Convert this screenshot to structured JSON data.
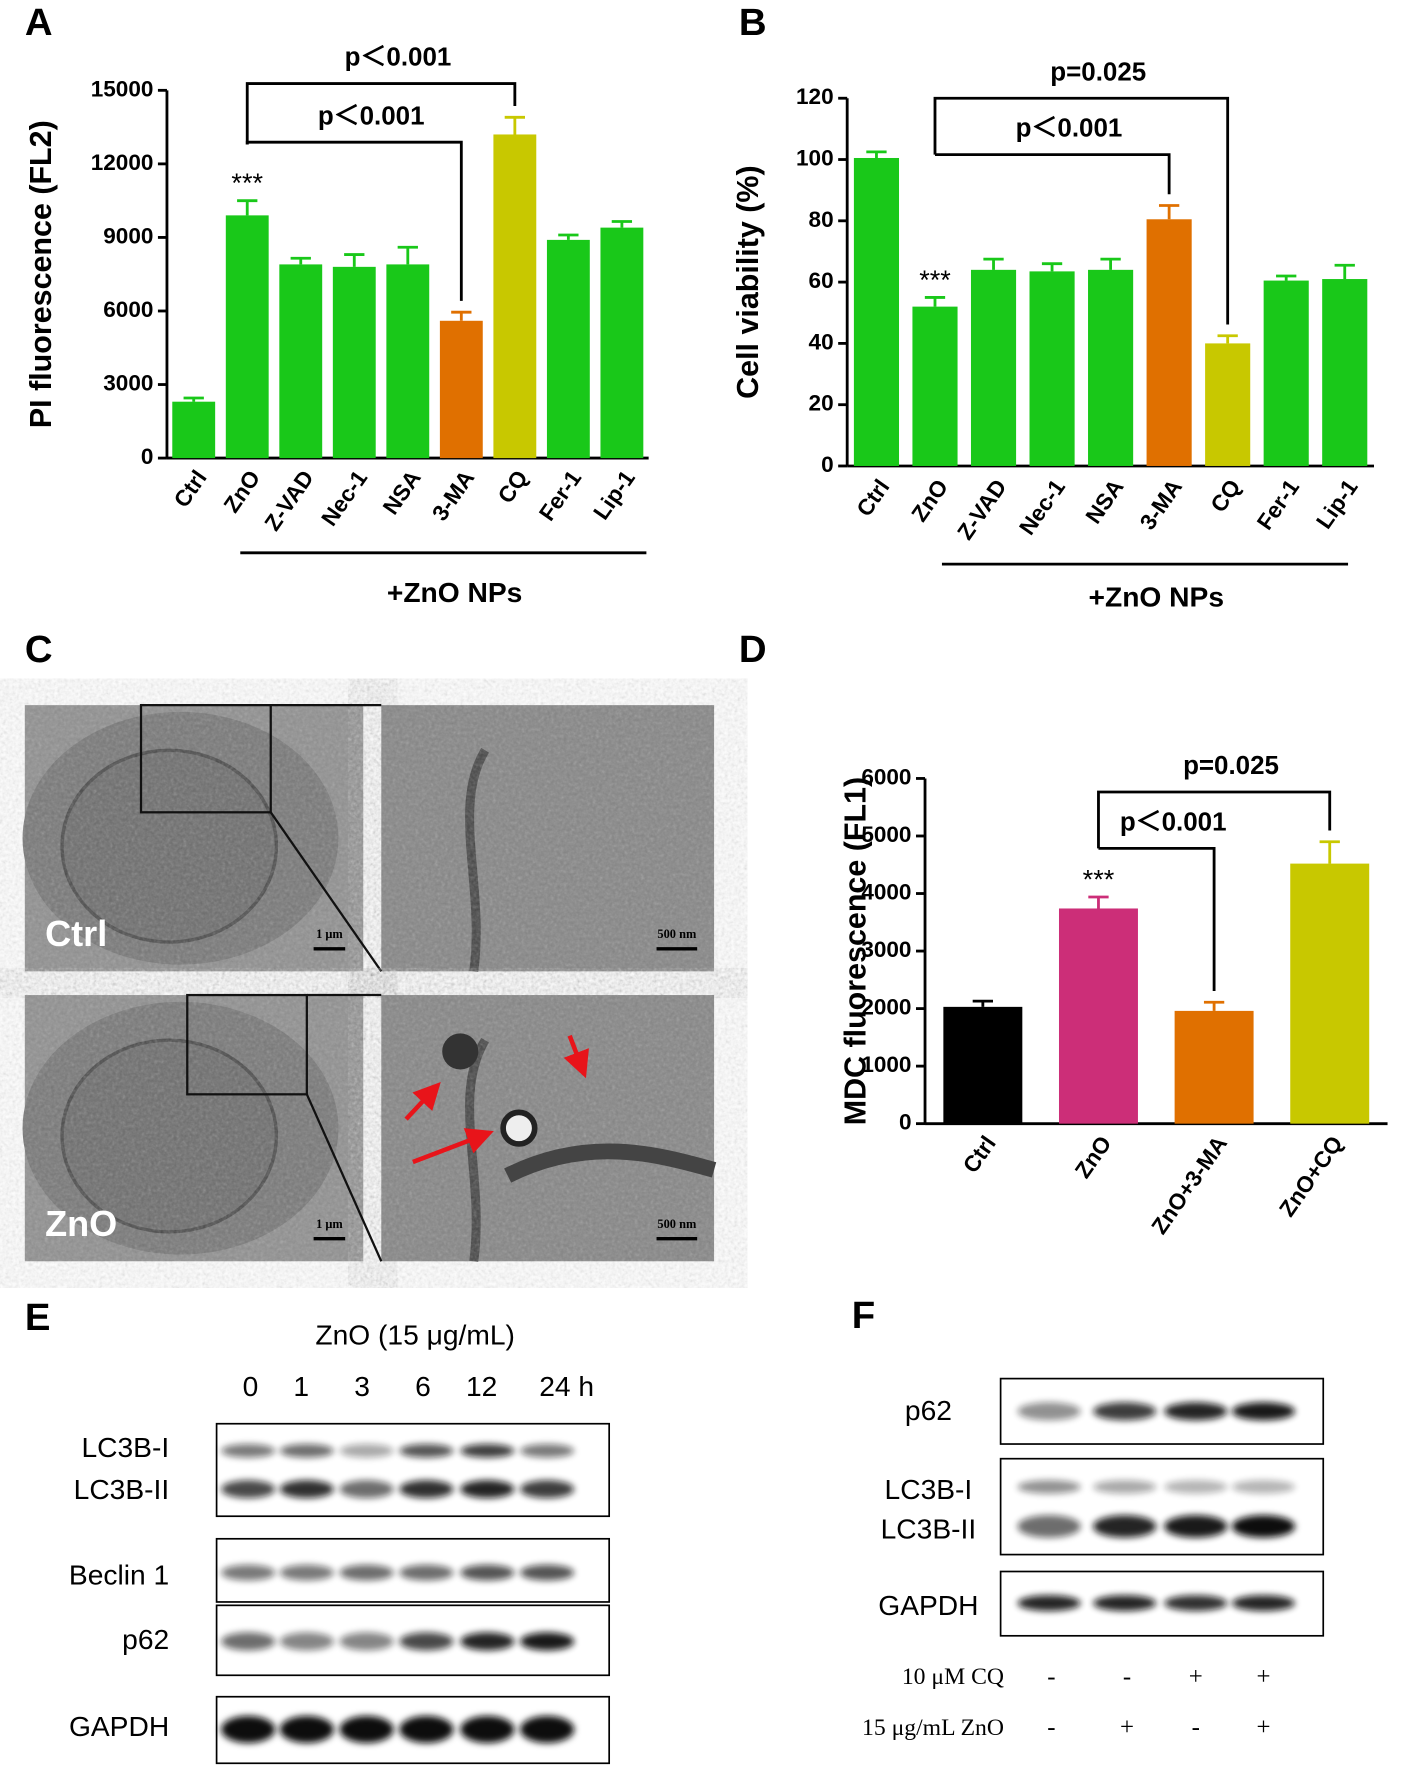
{
  "panel_labels": [
    "A",
    "B",
    "C",
    "D",
    "E",
    "F"
  ],
  "chart_data": [
    {
      "type": "bar",
      "y_label": "PI fluorescence (FL2)",
      "categories": [
        "Ctrl",
        "ZnO",
        "Z-VAD",
        "Nec-1",
        "NSA",
        "3-MA",
        "CQ",
        "Fer-1",
        "Lip-1"
      ],
      "values": [
        2300,
        9900,
        7900,
        7800,
        7900,
        5600,
        13200,
        8900,
        9400
      ],
      "errors": [
        150,
        600,
        250,
        500,
        700,
        350,
        700,
        200,
        250
      ],
      "colors": [
        "#19c819",
        "#19c819",
        "#19c819",
        "#19c819",
        "#19c819",
        "#e07000",
        "#c8c800",
        "#19c819",
        "#19c819"
      ],
      "ylim": [
        0,
        15000
      ],
      "yticks": [
        0,
        3000,
        6000,
        9000,
        12000,
        15000
      ],
      "annotations": [
        "***",
        "p＜0.001",
        "p＜0.001"
      ],
      "group_label": "+ZnO NPs"
    },
    {
      "type": "bar",
      "y_label": "Cell viability (%)",
      "categories": [
        "Ctrl",
        "ZnO",
        "Z-VAD",
        "Nec-1",
        "NSA",
        "3-MA",
        "CQ",
        "Fer-1",
        "Lip-1"
      ],
      "values": [
        100.5,
        52,
        64,
        63.5,
        64,
        80.5,
        40,
        60.5,
        61
      ],
      "errors": [
        2,
        3,
        3.5,
        2.5,
        3.5,
        4.5,
        2.5,
        1.5,
        4.5
      ],
      "colors": [
        "#19c819",
        "#19c819",
        "#19c819",
        "#19c819",
        "#19c819",
        "#e07000",
        "#c8c800",
        "#19c819",
        "#19c819"
      ],
      "ylim": [
        0,
        120
      ],
      "yticks": [
        0,
        20,
        40,
        60,
        80,
        100,
        120
      ],
      "annotations": [
        "***",
        "p=0.025",
        "p＜0.001"
      ],
      "group_label": "+ZnO NPs"
    },
    {
      "type": "bar",
      "y_label": "MDC fluorescence (FL1)",
      "categories": [
        "Ctrl",
        "ZnO",
        "ZnO+3-MA",
        "ZnO+CQ"
      ],
      "values": [
        2030,
        3740,
        1960,
        4520
      ],
      "errors": [
        100,
        200,
        150,
        380
      ],
      "colors": [
        "#000000",
        "#cc2e78",
        "#e07000",
        "#c8c800"
      ],
      "ylim": [
        0,
        6000
      ],
      "yticks": [
        0,
        1000,
        2000,
        3000,
        4000,
        5000,
        6000
      ],
      "annotations": [
        "***",
        "p=0.025",
        "p＜0.001"
      ]
    }
  ],
  "tem": {
    "rows": [
      {
        "label": "Ctrl",
        "scale_bars": [
          "1 μm",
          "500 nm"
        ]
      },
      {
        "label": "ZnO",
        "scale_bars": [
          "1 μm",
          "500 nm"
        ]
      }
    ]
  },
  "blot_e": {
    "title": "ZnO (15 μg/mL)",
    "lanes": [
      "0",
      "1",
      "3",
      "6",
      "12",
      "24 h"
    ],
    "rows": [
      "LC3B-I",
      "LC3B-II",
      "Beclin 1",
      "p62",
      "GAPDH"
    ]
  },
  "blot_f": {
    "rows": [
      "p62",
      "LC3B-I",
      "LC3B-II",
      "GAPDH"
    ],
    "treatments": [
      {
        "label": "10 μM CQ",
        "signs": [
          "-",
          "-",
          "+",
          "+"
        ]
      },
      {
        "label": "15 μg/mL ZnO",
        "signs": [
          "-",
          "+",
          "-",
          "+"
        ]
      }
    ]
  }
}
